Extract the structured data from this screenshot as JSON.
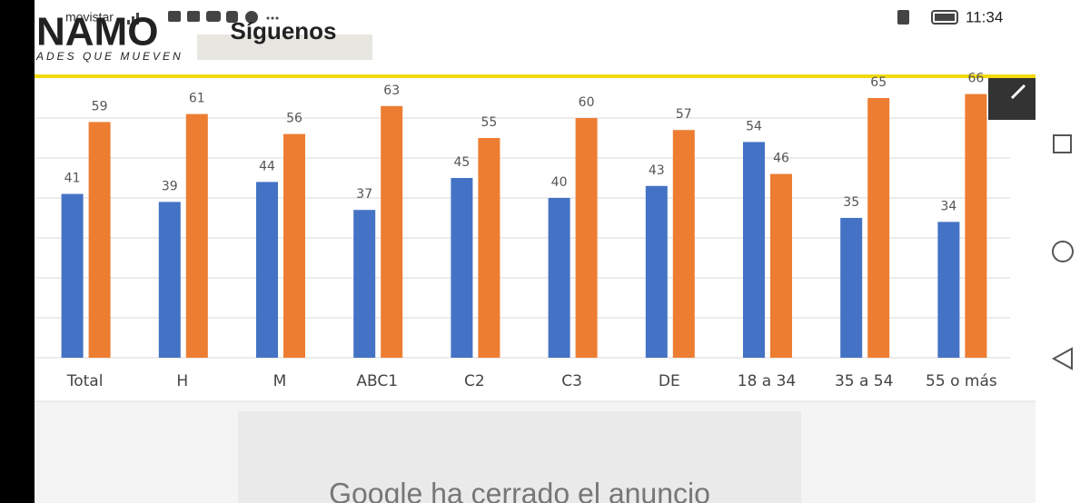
{
  "status_bar": {
    "carrier": "movistar",
    "time": "11:34"
  },
  "header": {
    "logo": "NAMO",
    "tagline": "ADES QUE MUEVEN",
    "button": "Síguenos"
  },
  "chart_data": {
    "type": "bar",
    "categories": [
      "Total",
      "H",
      "M",
      "ABC1",
      "C2",
      "C3",
      "DE",
      "18 a 34",
      "35 a 54",
      "55 o más"
    ],
    "series": [
      {
        "color": "#4472c4",
        "values": [
          41,
          39,
          44,
          37,
          45,
          40,
          43,
          54,
          35,
          34
        ]
      },
      {
        "color": "#ed7d31",
        "values": [
          59,
          61,
          56,
          63,
          55,
          60,
          57,
          46,
          65,
          66
        ]
      }
    ],
    "ylim": [
      0,
      70
    ],
    "yticks": [
      0,
      10,
      20,
      30,
      40,
      50,
      60
    ],
    "grid": true
  },
  "ad": {
    "text": "Google ha cerrado el anuncio"
  }
}
